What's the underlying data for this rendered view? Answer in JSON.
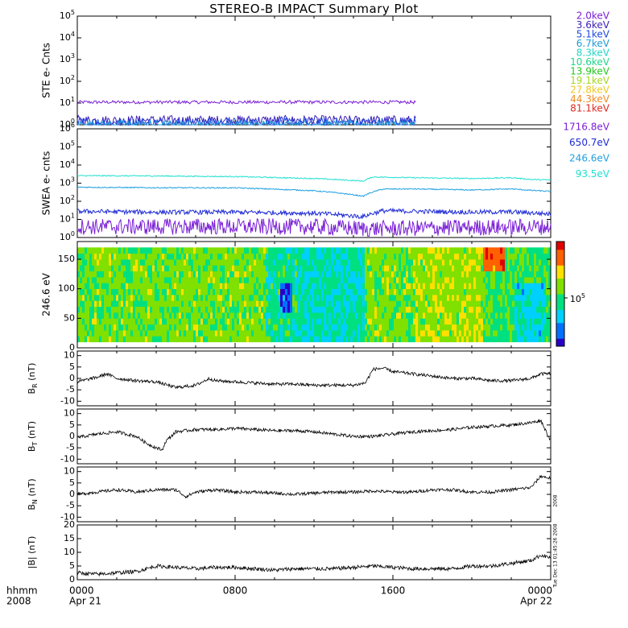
{
  "title": "STEREO-B IMPACT Summary Plot",
  "stamp": "Tue Dec 13 01:45:26 2008",
  "time_axis": {
    "row1_label": "hhmm",
    "row2_label": "2008",
    "ticks": [
      {
        "time": "0000",
        "date": "Apr 21",
        "hour": 0
      },
      {
        "time": "0800",
        "date": "",
        "hour": 8
      },
      {
        "time": "1600",
        "date": "",
        "hour": 16
      },
      {
        "time": "0000",
        "date": "Apr 22",
        "hour": 24
      }
    ],
    "range_hours": [
      0,
      24
    ]
  },
  "ste_legend": [
    {
      "label": "2.0keV",
      "color": "#7a1fd6"
    },
    {
      "label": "3.6keV",
      "color": "#3a1fb8"
    },
    {
      "label": "5.1keV",
      "color": "#1f4be0"
    },
    {
      "label": "6.7keV",
      "color": "#1f9bd6"
    },
    {
      "label": "8.3keV",
      "color": "#1fd6c8"
    },
    {
      "label": "10.6keV",
      "color": "#1fd68a"
    },
    {
      "label": "13.9keV",
      "color": "#22c81f"
    },
    {
      "label": "19.1keV",
      "color": "#a8d61f"
    },
    {
      "label": "27.8keV",
      "color": "#f0c81f"
    },
    {
      "label": "44.3keV",
      "color": "#f08a1f"
    },
    {
      "label": "81.1keV",
      "color": "#e0281f"
    }
  ],
  "swea_legend": [
    {
      "label": "1716.8eV",
      "color": "#7a1fd6"
    },
    {
      "label": "650.7eV",
      "color": "#1f2bd6"
    },
    {
      "label": "246.6eV",
      "color": "#1fa0e0"
    },
    {
      "label": "93.5eV",
      "color": "#1fe0d0"
    }
  ],
  "panels": {
    "ste": {
      "ylabel": "STE e- Cnts",
      "ticks": [
        "10^0",
        "10^1",
        "10^2",
        "10^3",
        "10^4",
        "10^5"
      ]
    },
    "swea": {
      "ylabel": "SWEA e- cnts",
      "ticks": [
        "10^0",
        "10^1",
        "10^2",
        "10^3",
        "10^4",
        "10^5",
        "10^6"
      ]
    },
    "pad": {
      "ylabel": "246.6 eV",
      "ticks": [
        "0",
        "50",
        "100",
        "150"
      ],
      "colorbar_label": "10^5"
    },
    "br": {
      "ylabel": "B_R (nT)",
      "ticks": [
        "-10",
        "-5",
        "0",
        "5",
        "10"
      ]
    },
    "bt": {
      "ylabel": "B_T (nT)",
      "ticks": [
        "-10",
        "-5",
        "0",
        "5",
        "10"
      ]
    },
    "bn": {
      "ylabel": "B_N (nT)",
      "ticks": [
        "-10",
        "-5",
        "0",
        "5",
        "10"
      ]
    },
    "bmag": {
      "ylabel": "|B| (nT)",
      "ticks": [
        "0",
        "5",
        "10",
        "15",
        "20"
      ]
    }
  },
  "chart_data": [
    {
      "type": "line",
      "title": "STEREO-B IMPACT Summary Plot",
      "ylabel": "STE e- Cnts",
      "yscale": "log",
      "ylim": [
        1,
        100000
      ],
      "x_range_hours": [
        0,
        17.2
      ],
      "series": [
        {
          "name": "2.0keV",
          "level": 11,
          "noise": 0.15
        },
        {
          "name": "3.6keV",
          "level": 1.6,
          "noise": 0.45
        },
        {
          "name": "5.1keV",
          "level": 1.2,
          "noise": 0.5
        },
        {
          "name": "6.7keV",
          "level": 1.0,
          "noise": 0.4
        }
      ]
    },
    {
      "type": "line",
      "ylabel": "SWEA e- cnts",
      "yscale": "log",
      "ylim": [
        1,
        1000000
      ],
      "x_range_hours": [
        0,
        24
      ],
      "series": [
        {
          "name": "93.5eV",
          "profile": [
            [
              0,
              2600
            ],
            [
              4,
              2500
            ],
            [
              8,
              2300
            ],
            [
              12,
              1800
            ],
            [
              14.5,
              1300
            ],
            [
              15,
              2200
            ],
            [
              17,
              2000
            ],
            [
              20,
              1800
            ],
            [
              22,
              2000
            ],
            [
              23,
              1600
            ],
            [
              24,
              1500
            ]
          ]
        },
        {
          "name": "246.6eV",
          "profile": [
            [
              0,
              600
            ],
            [
              4,
              560
            ],
            [
              8,
              550
            ],
            [
              12,
              380
            ],
            [
              14.5,
              190
            ],
            [
              15.5,
              470
            ],
            [
              17,
              480
            ],
            [
              20,
              420
            ],
            [
              22,
              480
            ],
            [
              23,
              400
            ],
            [
              24,
              350
            ]
          ]
        },
        {
          "name": "650.7eV",
          "profile": [
            [
              0,
              28
            ],
            [
              4,
              25
            ],
            [
              8,
              25
            ],
            [
              12,
              22
            ],
            [
              14.5,
              14
            ],
            [
              15.5,
              30
            ],
            [
              17,
              28
            ],
            [
              20,
              25
            ],
            [
              22,
              26
            ],
            [
              24,
              20
            ]
          ]
        },
        {
          "name": "1716.8eV",
          "profile": [
            [
              0,
              4
            ],
            [
              12,
              4
            ],
            [
              14.5,
              3
            ],
            [
              24,
              4
            ]
          ]
        }
      ]
    },
    {
      "type": "heatmap",
      "ylabel": "246.6 eV",
      "ylim": [
        0,
        180
      ],
      "y_range": [
        10,
        170
      ],
      "x_range_hours": [
        0,
        24
      ],
      "color_scale": [
        "#2a00c8",
        "#0070ff",
        "#00d0ff",
        "#00e080",
        "#80e000",
        "#ffe000",
        "#ff6000",
        "#e00000"
      ],
      "colorbar_label": "10^5",
      "features": [
        {
          "hours": [
            0,
            9.5
          ],
          "level": 0.55
        },
        {
          "hours": [
            9.5,
            11.2
          ],
          "level": 0.42
        },
        {
          "hours": [
            10.3,
            10.9
          ],
          "pitch": [
            60,
            105
          ],
          "level": 0.12
        },
        {
          "hours": [
            11.2,
            14.6
          ],
          "level": 0.38
        },
        {
          "hours": [
            14.6,
            17
          ],
          "level": 0.55
        },
        {
          "hours": [
            17,
            20.6
          ],
          "level": 0.6
        },
        {
          "hours": [
            20.6,
            21.7
          ],
          "pitch": [
            135,
            170
          ],
          "level": 0.88
        },
        {
          "hours": [
            21.7,
            22.2
          ],
          "level": 0.5
        },
        {
          "hours": [
            22.2,
            23.8
          ],
          "pitch": [
            10,
            110
          ],
          "level": 0.32
        },
        {
          "hours": [
            23.8,
            24
          ],
          "level": 0.5
        }
      ]
    },
    {
      "type": "line",
      "ylabel": "B_R (nT)",
      "ylim": [
        -12,
        12
      ],
      "x_range_hours": [
        0,
        24
      ],
      "series": [
        {
          "name": "B_R",
          "values": [
            [
              0,
              -1.5
            ],
            [
              0.5,
              -0.5
            ],
            [
              1,
              0.5
            ],
            [
              1.5,
              2
            ],
            [
              2,
              0
            ],
            [
              3,
              -1
            ],
            [
              4,
              -1.5
            ],
            [
              5,
              -4
            ],
            [
              6,
              -3
            ],
            [
              6.7,
              0
            ],
            [
              7,
              -1
            ],
            [
              8,
              -1.5
            ],
            [
              9,
              -2
            ],
            [
              10,
              -2.5
            ],
            [
              11,
              -2.5
            ],
            [
              12,
              -3
            ],
            [
              13,
              -3
            ],
            [
              14,
              -3
            ],
            [
              14.6,
              -2
            ],
            [
              15,
              4
            ],
            [
              15.5,
              4.5
            ],
            [
              16,
              3
            ],
            [
              17,
              2
            ],
            [
              18,
              1
            ],
            [
              19,
              0
            ],
            [
              20,
              0
            ],
            [
              21,
              -1
            ],
            [
              22,
              -1
            ],
            [
              23,
              0
            ],
            [
              23.5,
              2
            ],
            [
              24,
              2
            ]
          ]
        }
      ]
    },
    {
      "type": "line",
      "ylabel": "B_T (nT)",
      "ylim": [
        -12,
        12
      ],
      "x_range_hours": [
        0,
        24
      ],
      "series": [
        {
          "name": "B_T",
          "values": [
            [
              0,
              -0.5
            ],
            [
              1,
              1
            ],
            [
              2,
              2
            ],
            [
              3,
              0
            ],
            [
              3.5,
              -3
            ],
            [
              4,
              -5
            ],
            [
              4.3,
              -6
            ],
            [
              4.5,
              -2
            ],
            [
              5,
              2
            ],
            [
              6,
              3
            ],
            [
              7,
              3
            ],
            [
              8,
              3.5
            ],
            [
              9,
              3
            ],
            [
              10,
              2.5
            ],
            [
              11,
              2.5
            ],
            [
              12,
              2
            ],
            [
              13,
              1
            ],
            [
              14,
              0
            ],
            [
              15,
              0
            ],
            [
              16,
              1
            ],
            [
              17,
              2
            ],
            [
              18,
              2.5
            ],
            [
              19,
              3
            ],
            [
              20,
              4
            ],
            [
              21,
              4.5
            ],
            [
              22,
              5
            ],
            [
              23,
              6
            ],
            [
              23.5,
              7
            ],
            [
              24,
              -2
            ]
          ]
        }
      ]
    },
    {
      "type": "line",
      "ylabel": "B_N (nT)",
      "ylim": [
        -12,
        12
      ],
      "x_range_hours": [
        0,
        24
      ],
      "series": [
        {
          "name": "B_N",
          "values": [
            [
              0,
              0
            ],
            [
              1,
              1
            ],
            [
              2,
              2
            ],
            [
              3,
              1
            ],
            [
              4,
              2
            ],
            [
              5,
              2
            ],
            [
              5.5,
              -1
            ],
            [
              6,
              1
            ],
            [
              7,
              2
            ],
            [
              8,
              1
            ],
            [
              9,
              1
            ],
            [
              10,
              0.5
            ],
            [
              11,
              0
            ],
            [
              12,
              0.5
            ],
            [
              13,
              1
            ],
            [
              14,
              1
            ],
            [
              15,
              1.5
            ],
            [
              16,
              1
            ],
            [
              17,
              1
            ],
            [
              18,
              2
            ],
            [
              19,
              2
            ],
            [
              20,
              1
            ],
            [
              21,
              1
            ],
            [
              22,
              2
            ],
            [
              23,
              3
            ],
            [
              23.5,
              8
            ],
            [
              24,
              7
            ]
          ]
        }
      ]
    },
    {
      "type": "line",
      "ylabel": "|B| (nT)",
      "ylim": [
        0,
        20
      ],
      "x_range_hours": [
        0,
        24
      ],
      "series": [
        {
          "name": "|B|",
          "values": [
            [
              0,
              2.5
            ],
            [
              1,
              2
            ],
            [
              2,
              2.5
            ],
            [
              3,
              3
            ],
            [
              4,
              5
            ],
            [
              5,
              4.5
            ],
            [
              6,
              4
            ],
            [
              7,
              4.5
            ],
            [
              8,
              4.5
            ],
            [
              9,
              4
            ],
            [
              10,
              3.5
            ],
            [
              11,
              4
            ],
            [
              12,
              4
            ],
            [
              13,
              4
            ],
            [
              14,
              4.5
            ],
            [
              15,
              5
            ],
            [
              16,
              4.5
            ],
            [
              17,
              4
            ],
            [
              18,
              4
            ],
            [
              19,
              4
            ],
            [
              20,
              5
            ],
            [
              21,
              5
            ],
            [
              22,
              6
            ],
            [
              23,
              7
            ],
            [
              23.5,
              9
            ],
            [
              24,
              8
            ]
          ]
        }
      ]
    }
  ]
}
